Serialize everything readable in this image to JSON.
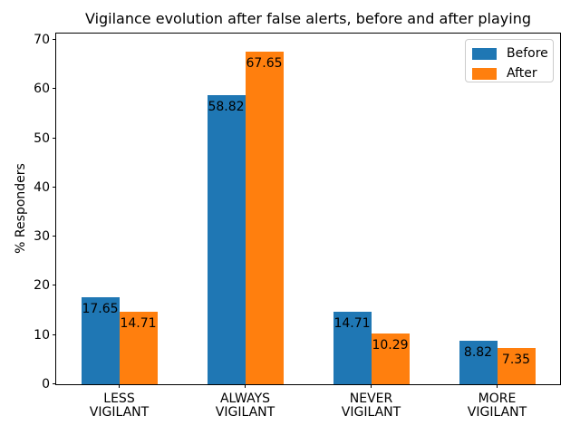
{
  "chart_data": {
    "type": "bar",
    "title": "Vigilance evolution after false alerts, before and after playing",
    "ylabel": "% Responders",
    "xlabel": "",
    "categories": [
      "LESS\nVIGILANT",
      "ALWAYS\nVIGILANT",
      "NEVER\nVIGILANT",
      "MORE\nVIGILANT"
    ],
    "series": [
      {
        "name": "Before",
        "color": "#1f77b4",
        "values": [
          17.65,
          58.82,
          14.71,
          8.82
        ]
      },
      {
        "name": "After",
        "color": "#ff7f0e",
        "values": [
          14.71,
          67.65,
          10.29,
          7.35
        ]
      }
    ],
    "yticks": [
      0,
      10,
      20,
      30,
      40,
      50,
      60,
      70
    ],
    "ylim": [
      0,
      71.3
    ],
    "bar_width_fraction": 0.3,
    "value_label_decimals": 2,
    "grid": false,
    "legend_position": "upper right"
  }
}
